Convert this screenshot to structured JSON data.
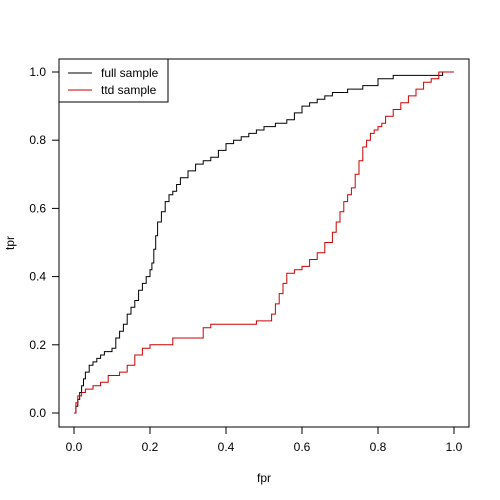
{
  "chart_data": {
    "type": "line",
    "title": "",
    "xlabel": "fpr",
    "ylabel": "tpr",
    "xlim": [
      0,
      1
    ],
    "ylim": [
      0,
      1
    ],
    "x_ticks": [
      "0.0",
      "0.2",
      "0.4",
      "0.6",
      "0.8",
      "1.0"
    ],
    "y_ticks": [
      "0.0",
      "0.2",
      "0.4",
      "0.6",
      "0.8",
      "1.0"
    ],
    "grid": false,
    "legend_position": "top-left",
    "series": [
      {
        "name": "full sample",
        "color": "#000000",
        "x": [
          0.0,
          0.005,
          0.01,
          0.015,
          0.02,
          0.025,
          0.03,
          0.04,
          0.05,
          0.06,
          0.07,
          0.08,
          0.1,
          0.11,
          0.12,
          0.13,
          0.14,
          0.15,
          0.16,
          0.17,
          0.18,
          0.19,
          0.2,
          0.205,
          0.21,
          0.215,
          0.22,
          0.23,
          0.24,
          0.25,
          0.26,
          0.27,
          0.28,
          0.3,
          0.32,
          0.34,
          0.36,
          0.38,
          0.4,
          0.42,
          0.44,
          0.46,
          0.48,
          0.5,
          0.53,
          0.56,
          0.58,
          0.6,
          0.62,
          0.64,
          0.66,
          0.68,
          0.72,
          0.76,
          0.8,
          0.84,
          0.9,
          0.94,
          0.97,
          1.0
        ],
        "y": [
          0.0,
          0.02,
          0.04,
          0.06,
          0.08,
          0.1,
          0.12,
          0.14,
          0.15,
          0.16,
          0.17,
          0.18,
          0.19,
          0.22,
          0.24,
          0.26,
          0.29,
          0.31,
          0.33,
          0.36,
          0.38,
          0.4,
          0.42,
          0.44,
          0.48,
          0.52,
          0.56,
          0.59,
          0.62,
          0.64,
          0.65,
          0.67,
          0.69,
          0.71,
          0.73,
          0.74,
          0.75,
          0.77,
          0.79,
          0.8,
          0.81,
          0.82,
          0.83,
          0.84,
          0.85,
          0.86,
          0.88,
          0.9,
          0.91,
          0.92,
          0.93,
          0.94,
          0.95,
          0.96,
          0.98,
          0.99,
          0.99,
          0.99,
          1.0,
          1.0
        ]
      },
      {
        "name": "ttd sample",
        "color": "#cc0000",
        "x": [
          0.0,
          0.005,
          0.01,
          0.02,
          0.03,
          0.05,
          0.07,
          0.09,
          0.12,
          0.14,
          0.16,
          0.18,
          0.2,
          0.26,
          0.34,
          0.36,
          0.48,
          0.52,
          0.53,
          0.54,
          0.55,
          0.56,
          0.58,
          0.6,
          0.62,
          0.64,
          0.66,
          0.68,
          0.69,
          0.7,
          0.71,
          0.72,
          0.73,
          0.74,
          0.75,
          0.76,
          0.77,
          0.78,
          0.79,
          0.8,
          0.81,
          0.82,
          0.84,
          0.86,
          0.88,
          0.9,
          0.92,
          0.94,
          0.96,
          1.0
        ],
        "y": [
          0.0,
          0.03,
          0.05,
          0.06,
          0.07,
          0.08,
          0.09,
          0.11,
          0.12,
          0.14,
          0.17,
          0.19,
          0.2,
          0.22,
          0.25,
          0.26,
          0.27,
          0.29,
          0.32,
          0.35,
          0.38,
          0.41,
          0.42,
          0.43,
          0.45,
          0.47,
          0.5,
          0.53,
          0.56,
          0.59,
          0.62,
          0.64,
          0.66,
          0.7,
          0.74,
          0.78,
          0.8,
          0.82,
          0.83,
          0.84,
          0.85,
          0.87,
          0.89,
          0.91,
          0.93,
          0.95,
          0.97,
          0.98,
          1.0,
          1.0
        ]
      }
    ]
  }
}
